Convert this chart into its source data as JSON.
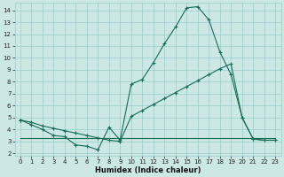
{
  "xlabel": "Humidex (Indice chaleur)",
  "bg_color": "#cce8e4",
  "grid_color": "#99cccc",
  "line_color": "#1a6b5a",
  "xlim_min": -0.5,
  "xlim_max": 23.5,
  "ylim_min": 1.8,
  "ylim_max": 14.6,
  "xticks": [
    0,
    1,
    2,
    3,
    4,
    5,
    6,
    7,
    8,
    9,
    10,
    11,
    12,
    13,
    14,
    15,
    16,
    17,
    18,
    19,
    20,
    21,
    22,
    23
  ],
  "yticks": [
    2,
    3,
    4,
    5,
    6,
    7,
    8,
    9,
    10,
    11,
    12,
    13,
    14
  ],
  "line1_x": [
    0,
    1,
    2,
    3,
    4,
    5,
    6,
    7,
    8,
    9,
    10,
    11,
    12,
    13,
    14,
    15,
    16,
    17,
    18,
    19,
    20,
    21,
    22,
    23
  ],
  "line1_y": [
    4.8,
    4.4,
    4.0,
    3.5,
    3.4,
    2.7,
    2.6,
    2.3,
    4.2,
    3.1,
    7.8,
    8.2,
    9.6,
    11.2,
    12.6,
    14.2,
    14.3,
    13.2,
    10.5,
    8.6,
    5.0,
    3.2,
    3.1,
    3.1
  ],
  "line2_x": [
    0,
    1,
    2,
    3,
    4,
    5,
    6,
    7,
    8,
    9,
    10,
    11,
    12,
    13,
    14,
    15,
    16,
    17,
    18,
    19,
    20,
    21,
    22,
    23
  ],
  "line2_y": [
    4.8,
    4.6,
    4.3,
    4.1,
    3.9,
    3.7,
    3.5,
    3.3,
    3.1,
    3.0,
    5.1,
    5.6,
    6.1,
    6.6,
    7.1,
    7.6,
    8.1,
    8.6,
    9.1,
    9.5,
    5.0,
    3.2,
    3.1,
    3.1
  ],
  "line3_x": [
    0,
    1,
    2,
    3,
    4,
    5,
    6,
    7,
    8,
    9,
    10,
    11,
    12,
    13,
    14,
    15,
    16,
    17,
    18,
    19,
    20,
    21,
    22,
    23
  ],
  "line3_y": [
    3.3,
    3.3,
    3.3,
    3.3,
    3.3,
    3.3,
    3.3,
    3.3,
    3.3,
    3.3,
    3.3,
    3.3,
    3.3,
    3.3,
    3.3,
    3.3,
    3.3,
    3.3,
    3.3,
    3.3,
    3.3,
    3.3,
    3.3,
    3.3
  ],
  "tick_fontsize": 5.0,
  "xlabel_fontsize": 6.0
}
